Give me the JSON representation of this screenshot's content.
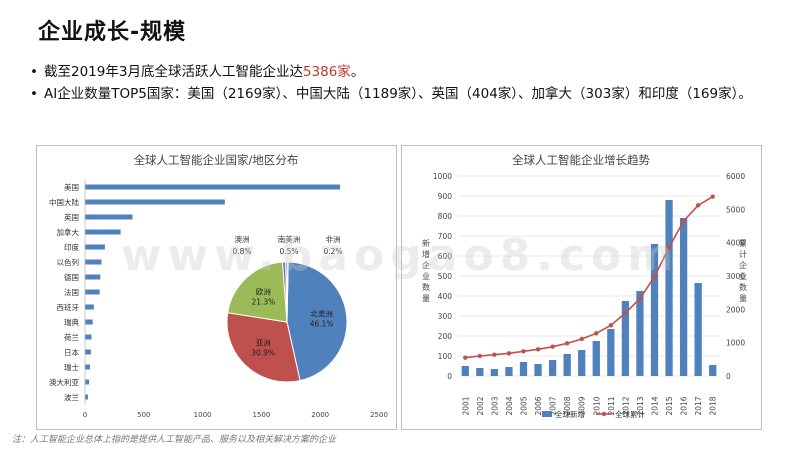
{
  "slide": {
    "title": "企业成长-规模",
    "bullets": [
      {
        "prefix": "截至2019年3月底全球活跃人工智能企业达",
        "highlight": "5386家",
        "suffix": "。"
      },
      {
        "prefix": "AI企业数量TOP5国家：美国（2169家）、中国大陆（1189家）、英国（404家）、加拿大（303家）和印度（169家）。",
        "highlight": "",
        "suffix": ""
      }
    ],
    "footnote": "注：人工智能企业总体上指的是提供人工智能产品、服务以及相关解决方案的企业",
    "watermark": "www.baogao8.com"
  },
  "chart_data": [
    {
      "type": "bar",
      "orientation": "horizontal",
      "title": "全球人工智能企业国家/地区分布",
      "categories": [
        "美国",
        "中国大陆",
        "英国",
        "加拿大",
        "印度",
        "以色列",
        "德国",
        "法国",
        "西班牙",
        "瑞典",
        "荷兰",
        "日本",
        "瑞士",
        "澳大利亚",
        "波兰"
      ],
      "category_labels": [
        "美国",
        "中国大陆",
        "英国",
        "加拿大",
        "印度",
        "以色列",
        "德国",
        "法国",
        "西班牙",
        "瑞典",
        "荷兰",
        "日本",
        "瑞士",
        "澳大利亚",
        "波兰"
      ],
      "values": [
        2169,
        1189,
        404,
        303,
        169,
        140,
        130,
        125,
        75,
        65,
        55,
        50,
        42,
        35,
        25
      ],
      "xlim": [
        0,
        2500
      ],
      "xticks": [
        0,
        500,
        1000,
        1500,
        2000,
        2500
      ],
      "color": "#4f81bd"
    },
    {
      "type": "pie",
      "slices": [
        {
          "label": "北美洲",
          "value": 46.1,
          "text": "46.1%",
          "color": "#4f81bd"
        },
        {
          "label": "亚洲",
          "value": 30.9,
          "text": "30.9%",
          "color": "#c0504d"
        },
        {
          "label": "欧洲",
          "value": 21.3,
          "text": "21.3%",
          "color": "#9bbb59"
        },
        {
          "label": "澳洲",
          "value": 0.8,
          "text": "0.8%",
          "color": "#8064a2"
        },
        {
          "label": "南美洲",
          "value": 0.5,
          "text": "0.5%",
          "color": "#4bacc6"
        },
        {
          "label": "非洲",
          "value": 0.2,
          "text": "0.2%",
          "color": "#f79646"
        }
      ]
    },
    {
      "type": "bar+line",
      "title": "全球人工智能企业增长趋势",
      "categories": [
        "2001",
        "2002",
        "2003",
        "2004",
        "2005",
        "2006",
        "2007",
        "2008",
        "2009",
        "2010",
        "2011",
        "2012",
        "2013",
        "2014",
        "2015",
        "2016",
        "2017",
        "2018"
      ],
      "series": [
        {
          "name": "全球新增",
          "type": "bar",
          "axis": "left",
          "color": "#4f81bd",
          "values": [
            50,
            40,
            35,
            45,
            70,
            60,
            80,
            110,
            130,
            175,
            235,
            375,
            425,
            660,
            880,
            790,
            465,
            55
          ]
        },
        {
          "name": "全球累计",
          "type": "line",
          "axis": "right",
          "color": "#c0504d",
          "values": [
            550,
            600,
            640,
            680,
            740,
            800,
            880,
            980,
            1110,
            1280,
            1520,
            1890,
            2320,
            2980,
            3860,
            4650,
            5120,
            5380
          ]
        }
      ],
      "ylim_left": [
        0,
        1000
      ],
      "yticks_left": [
        0,
        100,
        200,
        300,
        400,
        500,
        600,
        700,
        800,
        900,
        1000
      ],
      "ylim_right": [
        0,
        6000
      ],
      "yticks_right": [
        0,
        1000,
        2000,
        3000,
        4000,
        5000,
        6000
      ],
      "ylabel_left": "新增企业数量",
      "ylabel_right": "累计企业数量"
    }
  ]
}
